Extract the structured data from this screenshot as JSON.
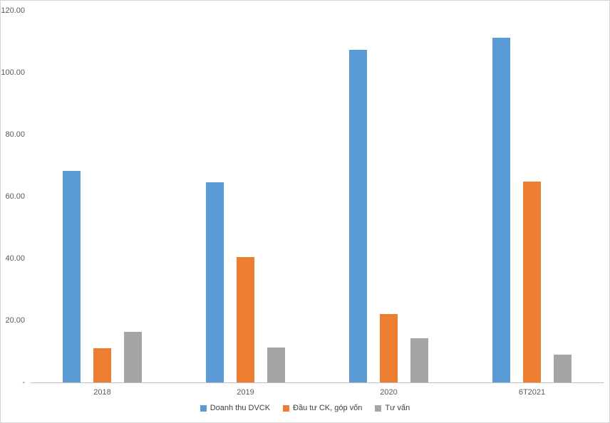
{
  "chart_data": {
    "type": "bar",
    "title": "",
    "xlabel": "",
    "ylabel": "",
    "categories": [
      "2018",
      "2019",
      "2020",
      "6T2021"
    ],
    "series": [
      {
        "name": "Doanh thu DVCK",
        "color": "#5B9BD5",
        "values": [
          68.2,
          64.5,
          107.3,
          111.3
        ]
      },
      {
        "name": "Đầu tư CK, góp vốn",
        "color": "#ED7D31",
        "values": [
          11.0,
          40.5,
          22.0,
          64.9
        ]
      },
      {
        "name": "Tư vấn",
        "color": "#A5A5A5",
        "values": [
          16.3,
          11.2,
          14.2,
          9.0
        ]
      }
    ],
    "ylim": [
      0,
      120
    ],
    "ytick_step": 20,
    "ytick_labels": [
      "-",
      "20.00",
      "40.00",
      "60.00",
      "80.00",
      "100.00",
      "120.00"
    ],
    "grid": false,
    "legend_position": "bottom"
  },
  "colors": {
    "axis_line": "#bfbfbf",
    "tick_text": "#595959",
    "border": "#d6d6d6"
  }
}
